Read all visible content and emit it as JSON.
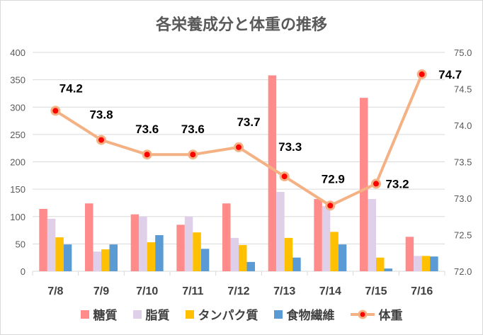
{
  "chart_data": {
    "type": "bar+line",
    "title": "各栄養成分と体重の推移",
    "categories": [
      "7/8",
      "7/9",
      "7/10",
      "7/11",
      "7/12",
      "7/13",
      "7/14",
      "7/15",
      "7/16"
    ],
    "series": [
      {
        "name": "糖質",
        "type": "bar",
        "axis": "left",
        "color": "#ff8b8b",
        "values": [
          114,
          124,
          104,
          85,
          124,
          358,
          132,
          317,
          63
        ]
      },
      {
        "name": "脂質",
        "type": "bar",
        "axis": "left",
        "color": "#e0cfe9",
        "values": [
          96,
          36,
          100,
          100,
          61,
          145,
          119,
          132,
          28
        ]
      },
      {
        "name": "タンパク質",
        "type": "bar",
        "axis": "left",
        "color": "#ffc000",
        "values": [
          62,
          40,
          53,
          71,
          48,
          61,
          72,
          25,
          28
        ]
      },
      {
        "name": "食物繊維",
        "type": "bar",
        "axis": "left",
        "color": "#5b9bd5",
        "values": [
          49,
          49,
          66,
          41,
          17,
          25,
          49,
          5,
          27
        ]
      },
      {
        "name": "体重",
        "type": "line",
        "axis": "right",
        "color": "#f4b183",
        "marker_color": "#ff0000",
        "values": [
          74.2,
          73.8,
          73.6,
          73.6,
          73.7,
          73.3,
          72.9,
          73.2,
          74.7
        ],
        "data_labels": [
          "74.2",
          "73.8",
          "73.6",
          "73.6",
          "73.7",
          "73.3",
          "72.9",
          "73.2",
          "74.7"
        ]
      }
    ],
    "y_left": {
      "range": [
        0,
        400
      ],
      "ticks": [
        "0",
        "50",
        "100",
        "150",
        "200",
        "250",
        "300",
        "350",
        "400"
      ]
    },
    "y_right": {
      "range": [
        72.0,
        75.0
      ],
      "ticks": [
        "72.0",
        "72.5",
        "73.0",
        "73.5",
        "74.0",
        "74.5",
        "75.0"
      ]
    },
    "grid": true,
    "legend": "bottom"
  }
}
